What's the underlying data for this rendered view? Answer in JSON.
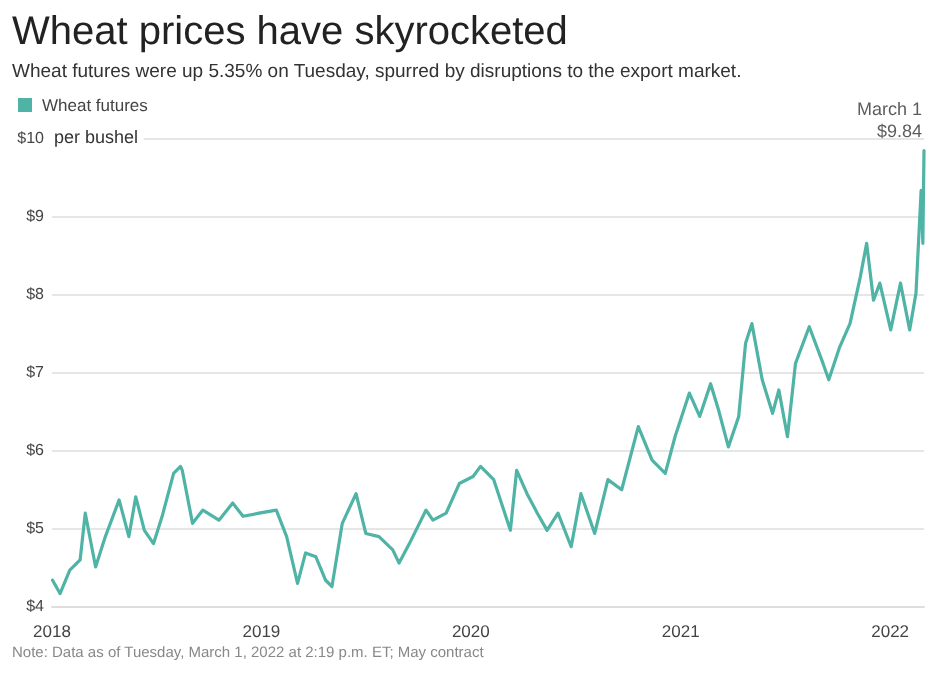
{
  "chart_data": {
    "type": "line",
    "title": "Wheat prices have skyrocketed",
    "subtitle": "Wheat futures were up 5.35% on Tuesday, spurred by disruptions to the export market.",
    "ylabel": "per bushel",
    "x": [
      "2018-01-02",
      "2018-01-15",
      "2018-02-01",
      "2018-02-19",
      "2018-02-28",
      "2018-03-18",
      "2018-04-04",
      "2018-04-28",
      "2018-05-15",
      "2018-05-27",
      "2018-06-11",
      "2018-06-27",
      "2018-07-12",
      "2018-08-01",
      "2018-08-13",
      "2018-08-16",
      "2018-09-03",
      "2018-09-21",
      "2018-10-19",
      "2018-11-12",
      "2018-11-30",
      "2018-12-28",
      "2019-01-27",
      "2019-02-14",
      "2019-03-05",
      "2019-03-19",
      "2019-04-06",
      "2019-04-23",
      "2019-05-04",
      "2019-05-22",
      "2019-06-15",
      "2019-07-02",
      "2019-07-25",
      "2019-08-18",
      "2019-08-29",
      "2019-09-16",
      "2019-10-15",
      "2019-10-27",
      "2019-11-19",
      "2019-12-12",
      "2020-01-05",
      "2020-01-18",
      "2020-02-10",
      "2020-03-10",
      "2020-03-21",
      "2020-04-08",
      "2020-04-26",
      "2020-05-13",
      "2020-06-01",
      "2020-06-24",
      "2020-07-11",
      "2020-08-04",
      "2020-08-27",
      "2020-09-20",
      "2020-10-19",
      "2020-11-12",
      "2020-12-05",
      "2020-12-22",
      "2021-01-16",
      "2021-02-03",
      "2021-02-22",
      "2021-03-08",
      "2021-03-25",
      "2021-04-12",
      "2021-04-24",
      "2021-05-05",
      "2021-05-23",
      "2021-06-10",
      "2021-06-21",
      "2021-07-06",
      "2021-07-20",
      "2021-08-13",
      "2021-09-06",
      "2021-09-16",
      "2021-10-05",
      "2021-10-23",
      "2021-11-10",
      "2021-11-21",
      "2021-12-03",
      "2021-12-14",
      "2022-01-02",
      "2022-01-19",
      "2022-02-04",
      "2022-02-15",
      "2022-02-24",
      "2022-02-27",
      "2022-03-01"
    ],
    "series": [
      {
        "name": "Wheat futures",
        "color": "#4fb3a5",
        "values": [
          4.33,
          4.16,
          4.46,
          4.59,
          5.19,
          4.5,
          4.89,
          5.36,
          4.89,
          5.4,
          4.97,
          4.8,
          5.15,
          5.7,
          5.79,
          5.74,
          5.06,
          5.23,
          5.1,
          5.32,
          5.15,
          5.19,
          5.23,
          4.89,
          4.29,
          4.68,
          4.63,
          4.33,
          4.25,
          5.06,
          5.44,
          4.93,
          4.89,
          4.72,
          4.55,
          4.8,
          5.23,
          5.1,
          5.19,
          5.57,
          5.66,
          5.79,
          5.62,
          4.97,
          5.74,
          5.44,
          5.19,
          4.97,
          5.19,
          4.76,
          5.44,
          4.93,
          5.62,
          5.49,
          6.3,
          5.87,
          5.7,
          6.17,
          6.73,
          6.43,
          6.85,
          6.51,
          6.04,
          6.43,
          7.37,
          7.62,
          6.9,
          6.47,
          6.77,
          6.17,
          7.11,
          7.58,
          7.11,
          6.9,
          7.32,
          7.62,
          8.22,
          8.65,
          7.92,
          8.14,
          7.54,
          8.14,
          7.54,
          8.01,
          9.33,
          8.65,
          9.84
        ]
      }
    ],
    "xlim": [
      "2018-01-01",
      "2022-03-01"
    ],
    "xticks": [
      {
        "value": "2018-01-01",
        "label": "2018"
      },
      {
        "value": "2019-01-01",
        "label": "2019"
      },
      {
        "value": "2020-01-01",
        "label": "2020"
      },
      {
        "value": "2021-01-01",
        "label": "2021"
      },
      {
        "value": "2022-01-01",
        "label": "2022"
      }
    ],
    "ylim": [
      4,
      10
    ],
    "yticks": [
      {
        "value": 4,
        "label": "$4"
      },
      {
        "value": 5,
        "label": "$5"
      },
      {
        "value": 6,
        "label": "$6"
      },
      {
        "value": 7,
        "label": "$7"
      },
      {
        "value": 8,
        "label": "$8"
      },
      {
        "value": 9,
        "label": "$9"
      },
      {
        "value": 10,
        "label": "$10"
      }
    ],
    "annotations": [
      {
        "text": "March 1\n$9.84",
        "x": "2022-03-01",
        "y": 9.84
      },
      "Note: Data as of Tuesday, March 1, 2022 at 2:19 p.m. ET; May contract"
    ],
    "grid": "y",
    "legend": "top left",
    "marker": "none",
    "line_style": "solid"
  }
}
